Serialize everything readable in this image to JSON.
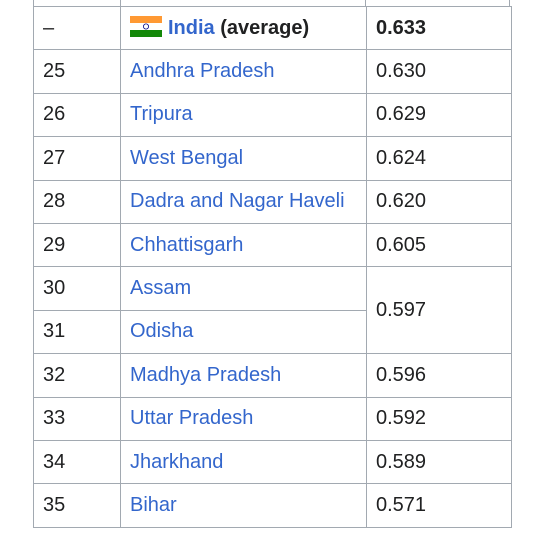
{
  "table": {
    "rows": [
      {
        "rank": "–",
        "name": "India",
        "suffix": "(average)",
        "value": "0.633"
      },
      {
        "rank": "25",
        "name": "Andhra Pradesh",
        "value": "0.630"
      },
      {
        "rank": "26",
        "name": "Tripura",
        "value": "0.629"
      },
      {
        "rank": "27",
        "name": "West Bengal",
        "value": "0.624"
      },
      {
        "rank": "28",
        "name": "Dadra and Nagar Haveli",
        "value": "0.620"
      },
      {
        "rank": "29",
        "name": "Chhattisgarh",
        "value": "0.605"
      },
      {
        "rank": "30",
        "name": "Assam",
        "value": "0.597"
      },
      {
        "rank": "31",
        "name": "Odisha"
      },
      {
        "rank": "32",
        "name": "Madhya Pradesh",
        "value": "0.596"
      },
      {
        "rank": "33",
        "name": "Uttar Pradesh",
        "value": "0.592"
      },
      {
        "rank": "34",
        "name": "Jharkhand",
        "value": "0.589"
      },
      {
        "rank": "35",
        "name": "Bihar",
        "value": "0.571"
      }
    ]
  }
}
